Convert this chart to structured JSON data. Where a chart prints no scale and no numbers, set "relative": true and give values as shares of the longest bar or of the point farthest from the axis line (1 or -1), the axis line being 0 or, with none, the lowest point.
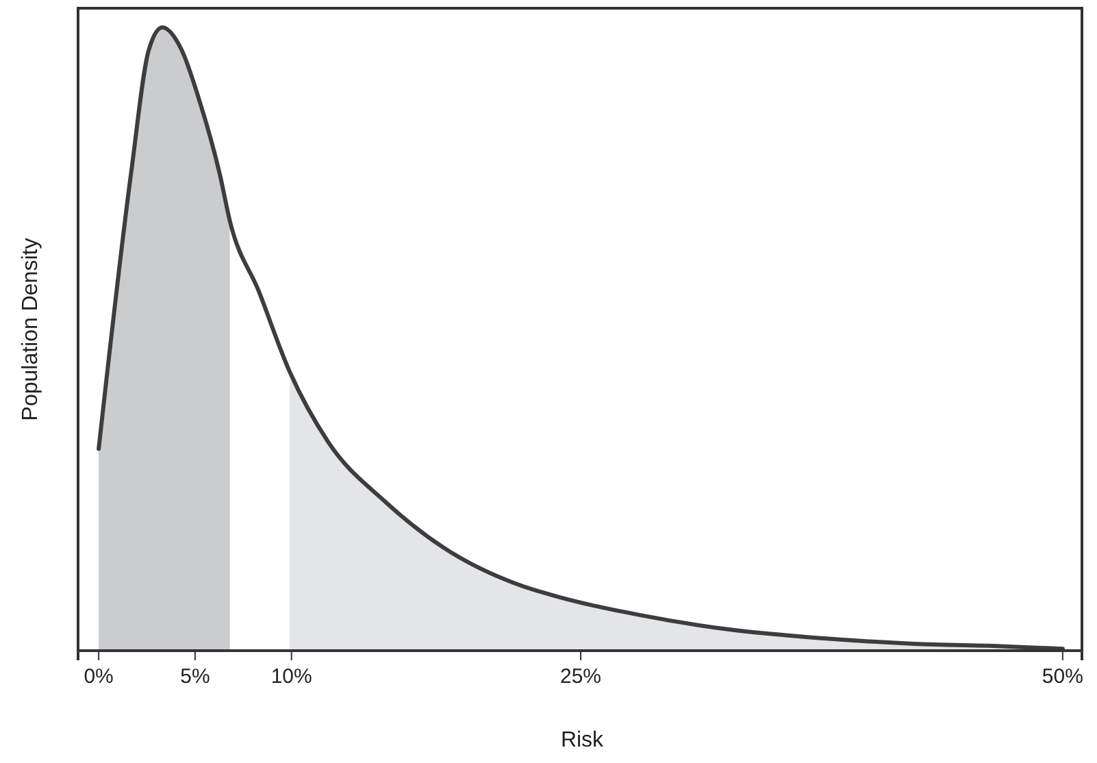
{
  "chart_data": {
    "type": "line",
    "xlabel": "Risk",
    "ylabel": "Population Density",
    "relative": true,
    "xlim": [
      -1.07,
      51
    ],
    "xticks": [
      {
        "value": 0,
        "label": "0%"
      },
      {
        "value": 5,
        "label": "5%"
      },
      {
        "value": 10,
        "label": "10%"
      },
      {
        "value": 25,
        "label": "25%"
      },
      {
        "value": 50,
        "label": "50%"
      }
    ],
    "series": [
      {
        "type": "area",
        "color": "#cbcccd",
        "x": [
          0,
          1.7,
          2.6,
          3.3,
          4.3,
          5.2,
          6.3,
          6.8
        ],
        "values": [
          0.324,
          0.771,
          0.964,
          1.0,
          0.964,
          0.885,
          0.762,
          0.69
        ]
      },
      {
        "type": "area",
        "color": "#e4e5e6",
        "x": [
          9.9,
          11.9,
          14.9,
          17.9,
          21.5,
          23.3,
          28.1,
          32.7,
          37.5,
          42.3,
          47,
          50
        ],
        "values": [
          0.448,
          0.335,
          0.238,
          0.165,
          0.109,
          0.091,
          0.057,
          0.034,
          0.02,
          0.011,
          0.007,
          0.003
        ]
      },
      {
        "type": "line",
        "color": "#3d3d3d",
        "x": [
          0,
          1.7,
          2.6,
          3.3,
          4.3,
          5.2,
          6.3,
          6.8,
          8.3,
          9.9,
          11.9,
          14.9,
          17.9,
          21.5,
          23.3,
          28.1,
          32.7,
          37.5,
          42.3,
          47,
          50
        ],
        "values": [
          0.324,
          0.771,
          0.964,
          1.0,
          0.964,
          0.885,
          0.762,
          0.69,
          0.577,
          0.448,
          0.335,
          0.238,
          0.165,
          0.109,
          0.091,
          0.057,
          0.034,
          0.02,
          0.011,
          0.007,
          0.003
        ]
      }
    ]
  }
}
